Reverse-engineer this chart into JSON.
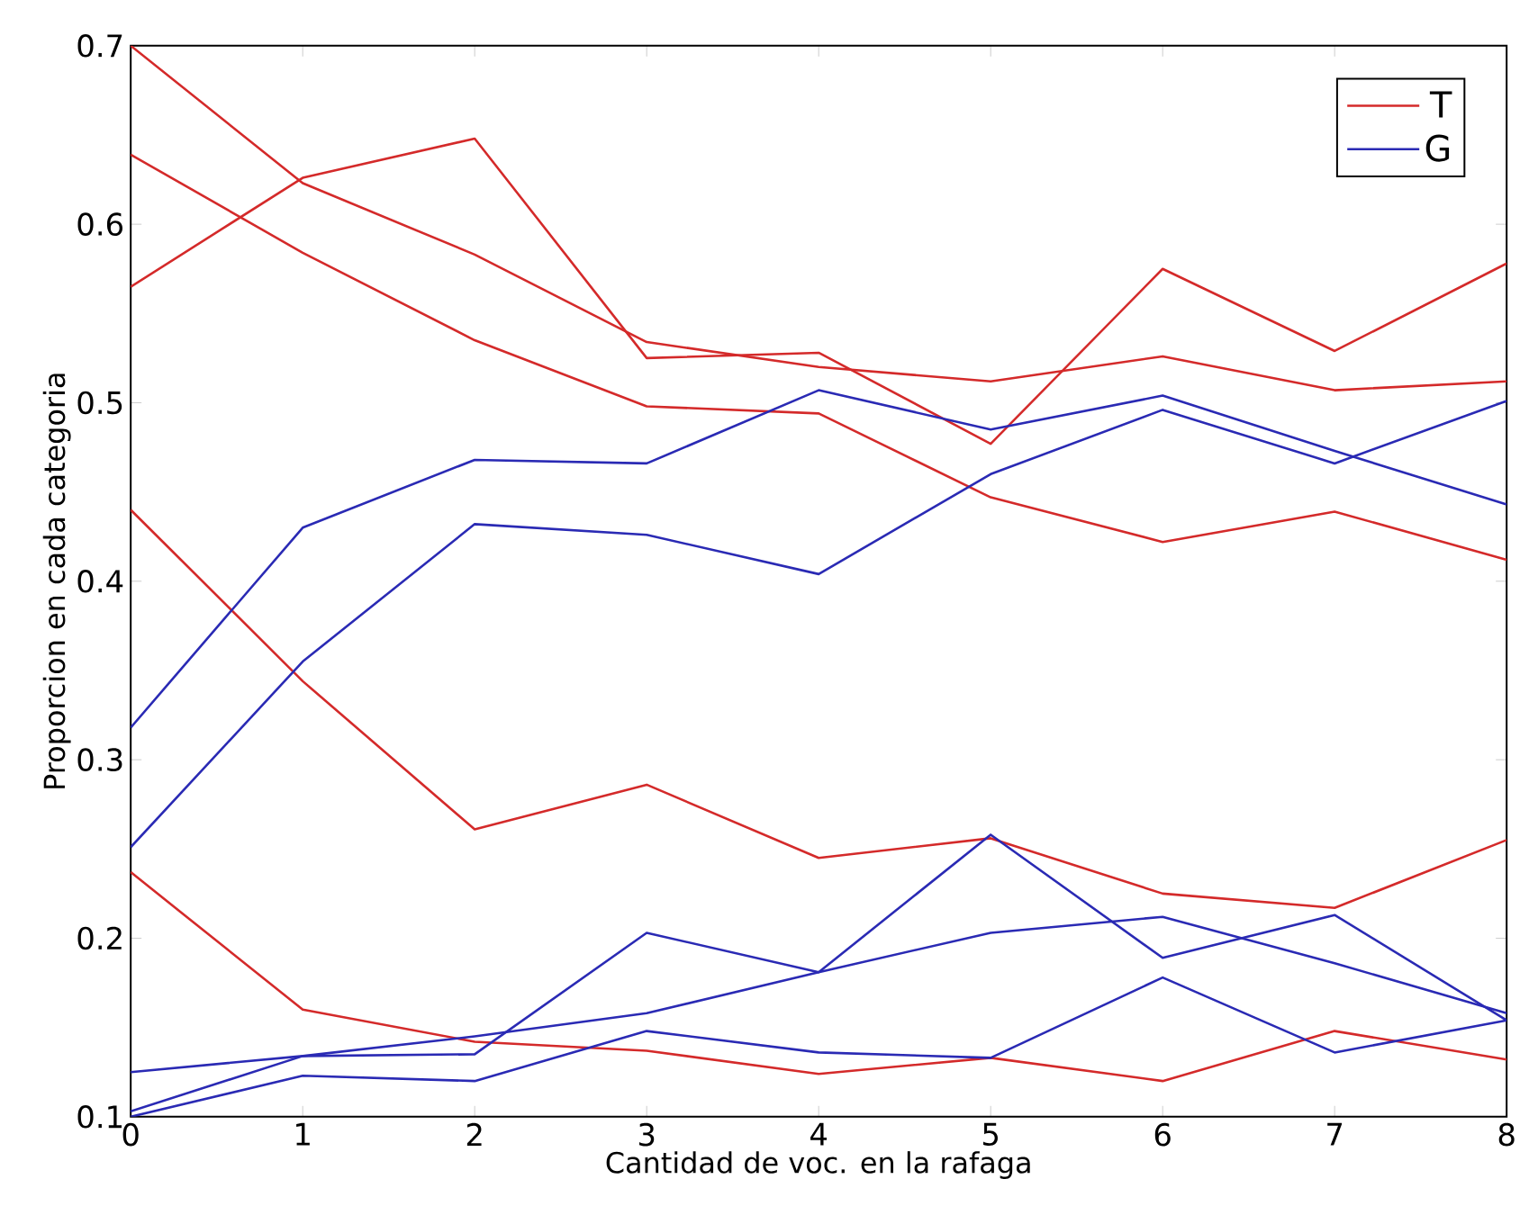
{
  "chart_data": {
    "type": "line",
    "xlabel": "Cantidad de voc. en la rafaga",
    "ylabel": "Proporcion en cada categoria",
    "x": [
      0,
      1,
      2,
      3,
      4,
      5,
      6,
      7,
      8
    ],
    "xlim": [
      0,
      8
    ],
    "ylim": [
      0.1,
      0.7
    ],
    "xticks": [
      0,
      1,
      2,
      3,
      4,
      5,
      6,
      7,
      8
    ],
    "yticks": [
      0.1,
      0.2,
      0.3,
      0.4,
      0.5,
      0.6,
      0.7
    ],
    "legend": "top right",
    "marker": "none",
    "line_style": "solid",
    "series": [
      {
        "name": "T",
        "color": "#d42a2a",
        "values": [
          0.7,
          0.623,
          0.583,
          0.534,
          0.52,
          0.512,
          0.526,
          0.507,
          0.512
        ]
      },
      {
        "color": "#d42a2a",
        "values": [
          0.565,
          0.626,
          0.648,
          0.525,
          0.528,
          0.477,
          0.575,
          0.529,
          0.578
        ]
      },
      {
        "color": "#d42a2a",
        "values": [
          0.639,
          0.584,
          0.535,
          0.498,
          0.494,
          0.447,
          0.422,
          0.439,
          0.412
        ]
      },
      {
        "color": "#d42a2a",
        "values": [
          0.44,
          0.344,
          0.261,
          0.286,
          0.245,
          0.256,
          0.225,
          0.217,
          0.255
        ]
      },
      {
        "color": "#d42a2a",
        "values": [
          0.237,
          0.16,
          0.142,
          0.137,
          0.124,
          0.133,
          0.12,
          0.148,
          0.132
        ]
      },
      {
        "name": "G",
        "color": "#2a2ab4",
        "values": [
          0.318,
          0.43,
          0.468,
          0.466,
          0.507,
          0.485,
          0.504,
          0.473,
          0.443
        ]
      },
      {
        "color": "#2a2ab4",
        "values": [
          0.251,
          0.355,
          0.432,
          0.426,
          0.404,
          0.46,
          0.496,
          0.466,
          0.501
        ]
      },
      {
        "color": "#2a2ab4",
        "values": [
          0.125,
          0.134,
          0.145,
          0.158,
          0.181,
          0.203,
          0.212,
          0.186,
          0.158
        ]
      },
      {
        "color": "#2a2ab4",
        "values": [
          0.103,
          0.134,
          0.135,
          0.203,
          0.181,
          0.258,
          0.189,
          0.213,
          0.154
        ]
      },
      {
        "color": "#2a2ab4",
        "values": [
          0.1,
          0.123,
          0.12,
          0.148,
          0.136,
          0.133,
          0.178,
          0.136,
          0.154
        ]
      }
    ]
  }
}
